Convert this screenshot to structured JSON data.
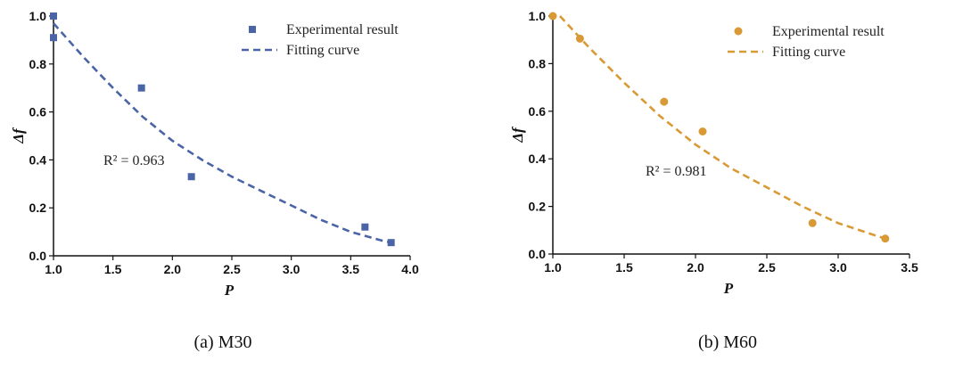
{
  "colors": {
    "m30": "#4a64a6",
    "m60": "#d99a36",
    "axis": "#111111"
  },
  "chart_data": [
    {
      "type": "scatter",
      "caption": "(a) M30",
      "xlabel": "P",
      "ylabel": "Δf",
      "xlim": [
        1.0,
        4.0
      ],
      "ylim": [
        0.0,
        1.0
      ],
      "xticks": [
        "1.0",
        "1.5",
        "2.0",
        "2.5",
        "3.0",
        "3.5",
        "4.0"
      ],
      "yticks": [
        "0.0",
        "0.2",
        "0.4",
        "0.6",
        "0.8",
        "1.0"
      ],
      "annotation": {
        "text": "R² = 0.963",
        "x": 1.42,
        "y": 0.38
      },
      "legend_position": "top-right",
      "series": [
        {
          "name": "Experimental result",
          "kind": "points",
          "marker": "square",
          "x": [
            1.0,
            1.0,
            1.74,
            2.16,
            3.62,
            3.84
          ],
          "y": [
            1.0,
            0.91,
            0.7,
            0.33,
            0.12,
            0.055
          ]
        },
        {
          "name": "Fitting curve",
          "kind": "line",
          "style": "dashed",
          "x": [
            1.0,
            1.25,
            1.5,
            1.75,
            2.0,
            2.25,
            2.5,
            2.75,
            3.0,
            3.25,
            3.5,
            3.75,
            3.84
          ],
          "y": [
            0.97,
            0.83,
            0.7,
            0.58,
            0.48,
            0.4,
            0.33,
            0.27,
            0.21,
            0.15,
            0.1,
            0.065,
            0.055
          ]
        }
      ]
    },
    {
      "type": "scatter",
      "caption": "(b) M60",
      "xlabel": "P",
      "ylabel": "Δf",
      "xlim": [
        1.0,
        3.5
      ],
      "ylim": [
        0.0,
        1.0
      ],
      "xticks": [
        "1.0",
        "1.5",
        "2.0",
        "2.5",
        "3.0",
        "3.5"
      ],
      "yticks": [
        "0.0",
        "0.2",
        "0.4",
        "0.6",
        "0.8",
        "1.0"
      ],
      "annotation": {
        "text": "R² = 0.981",
        "x": 1.65,
        "y": 0.33
      },
      "legend_position": "top-right",
      "series": [
        {
          "name": "Experimental result",
          "kind": "points",
          "marker": "circle",
          "x": [
            1.0,
            1.19,
            1.78,
            2.05,
            2.82,
            3.33
          ],
          "y": [
            1.0,
            0.905,
            0.64,
            0.515,
            0.13,
            0.065
          ]
        },
        {
          "name": "Fitting curve",
          "kind": "line",
          "style": "dashed",
          "x": [
            1.05,
            1.25,
            1.5,
            1.75,
            2.0,
            2.25,
            2.5,
            2.75,
            3.0,
            3.25,
            3.33
          ],
          "y": [
            1.0,
            0.87,
            0.72,
            0.58,
            0.46,
            0.36,
            0.28,
            0.2,
            0.13,
            0.08,
            0.065
          ]
        }
      ]
    }
  ]
}
